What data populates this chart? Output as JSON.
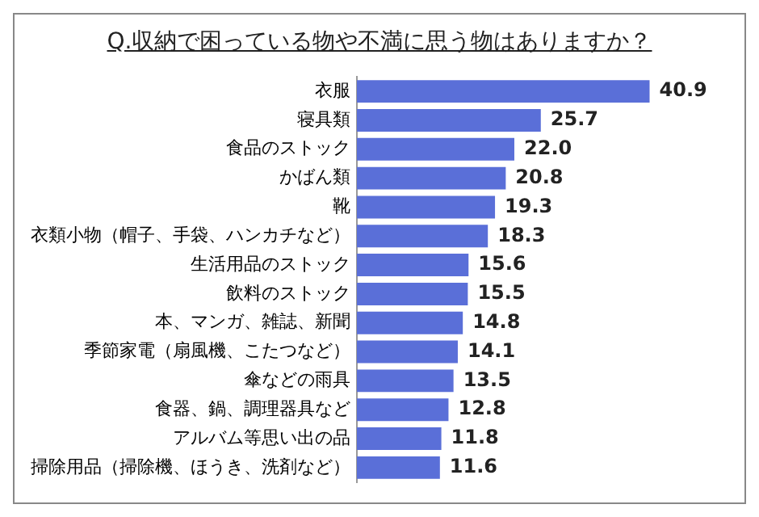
{
  "chart_data": {
    "type": "bar",
    "orientation": "horizontal",
    "title": "Q.収納で困っている物や不満に思う物はありますか？",
    "categories": [
      "衣服",
      "寝具類",
      "食品のストック",
      "かばん類",
      "靴",
      "衣類小物（帽子、手袋、ハンカチなど）",
      "生活用品のストック",
      "飲料のストック",
      "本、マンガ、雑誌、新聞",
      "季節家電（扇風機、こたつなど）",
      "傘などの雨具",
      "食器、鍋、調理器具など",
      "アルバム等思い出の品",
      "掃除用品（掃除機、ほうき、洗剤など）"
    ],
    "values": [
      40.9,
      25.7,
      22.0,
      20.8,
      19.3,
      18.3,
      15.6,
      15.5,
      14.8,
      14.1,
      13.5,
      12.8,
      11.8,
      11.6
    ],
    "value_labels": [
      "40.9",
      "25.7",
      "22.0",
      "20.8",
      "19.3",
      "18.3",
      "15.6",
      "15.5",
      "14.8",
      "14.1",
      "13.5",
      "12.8",
      "11.8",
      "11.6"
    ],
    "color": "#5a6fd8"
  }
}
